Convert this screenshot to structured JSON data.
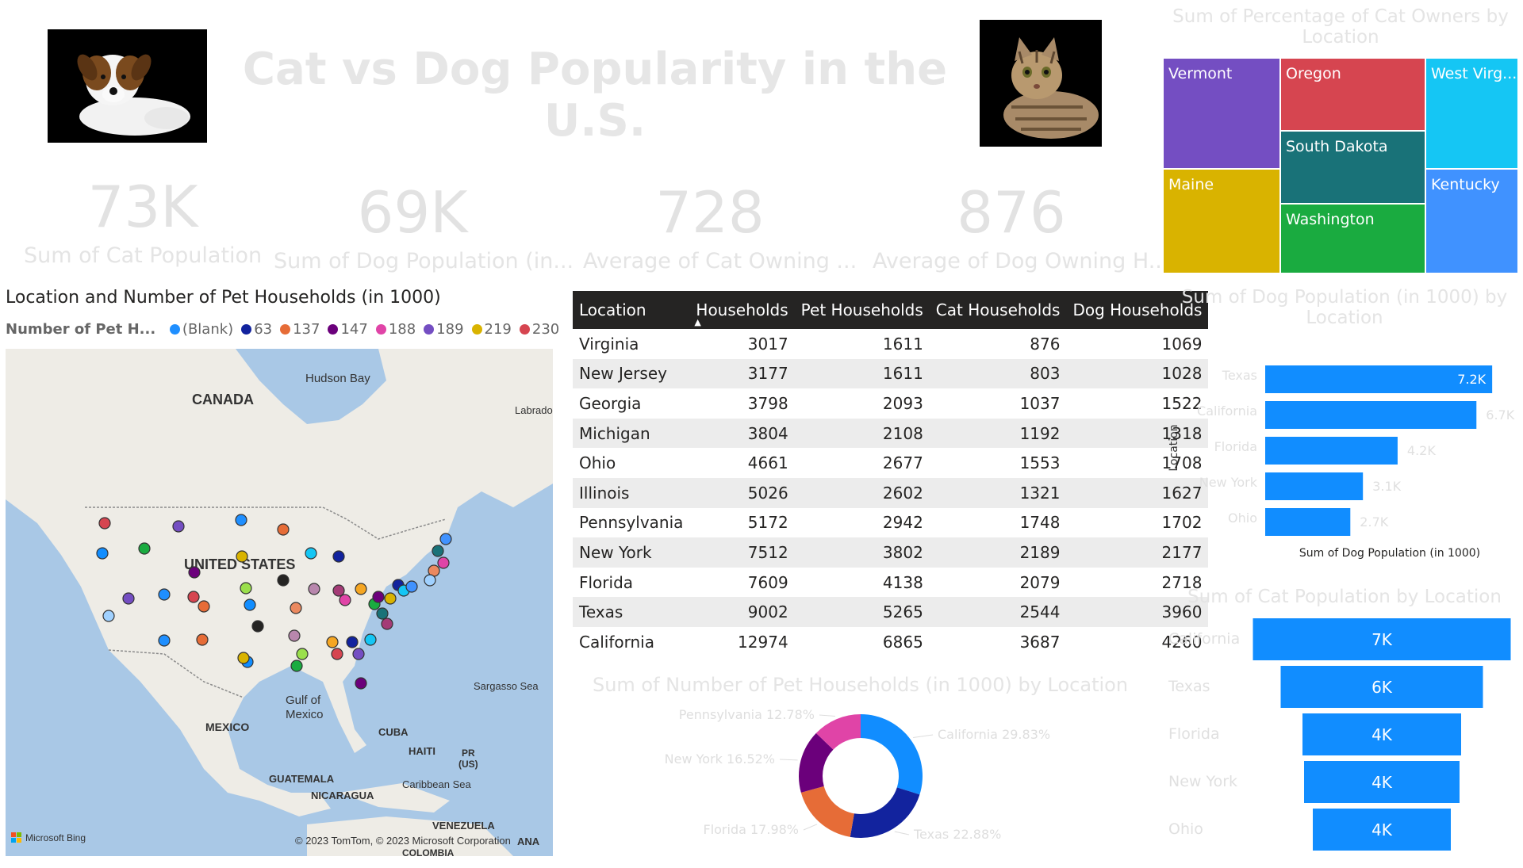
{
  "header": {
    "title": "Cat vs Dog Popularity in the U.S."
  },
  "kpis": [
    {
      "value": "73K",
      "label": "Sum of Cat Population"
    },
    {
      "value": "69K",
      "label": "Sum of Dog Population (in..."
    },
    {
      "value": "728",
      "label": "Average of Cat Owning ..."
    },
    {
      "value": "876",
      "label": "Average of Dog Owning H..."
    }
  ],
  "map": {
    "title": "Location and Number of Pet Households (in 1000)",
    "legend_title": "Number of Pet H...",
    "legend": [
      {
        "label": "(Blank)",
        "color": "#1f8fff"
      },
      {
        "label": "63",
        "color": "#12239e"
      },
      {
        "label": "137",
        "color": "#e66c37"
      },
      {
        "label": "147",
        "color": "#6b007b"
      },
      {
        "label": "188",
        "color": "#e044a7"
      },
      {
        "label": "189",
        "color": "#744ec2"
      },
      {
        "label": "219",
        "color": "#d9b300"
      },
      {
        "label": "230",
        "color": "#d64550"
      }
    ],
    "labels": {
      "canada": "CANADA",
      "us": "UNITED STATES",
      "mexico": "MEXICO",
      "hudson": "Hudson Bay",
      "labrador": "Labrado",
      "gulf1": "Gulf of",
      "gulf2": "Mexico",
      "sargasso": "Sargasso Sea",
      "cuba": "CUBA",
      "haiti": "HAITI",
      "pr1": "PR",
      "pr2": "(US)",
      "guatemala": "GUATEMALA",
      "caribbean": "Caribbean Sea",
      "nicaragua": "NICARAGUA",
      "venezuela": "VENEZUELA",
      "guyana": "ANA",
      "colombia": "COLOMBIA",
      "bing": "Microsoft Bing",
      "copyright": "© 2023 TomTom, © 2023 Microsoft Corporation"
    },
    "bubble_colors": [
      "#d64550",
      "#744ec2",
      "#1f8fff",
      "#e66c37",
      "#118dff",
      "#1aab40",
      "#6b007b",
      "#d9b300",
      "#12239e",
      "#15c6f4",
      "#4092ff",
      "#197278",
      "#e044a7",
      "#eb895f",
      "#a0d1ff",
      "#252423",
      "#b887ad",
      "#a43b76",
      "#f5a623",
      "#9adf4c"
    ]
  },
  "table": {
    "columns": [
      "Location",
      "Households",
      "Pet Households",
      "Cat Households",
      "Dog Households"
    ],
    "rows": [
      [
        "Virginia",
        "3017",
        "1611",
        "876",
        "1069"
      ],
      [
        "New Jersey",
        "3177",
        "1611",
        "803",
        "1028"
      ],
      [
        "Georgia",
        "3798",
        "2093",
        "1037",
        "1522"
      ],
      [
        "Michigan",
        "3804",
        "2108",
        "1192",
        "1318"
      ],
      [
        "Ohio",
        "4661",
        "2677",
        "1553",
        "1708"
      ],
      [
        "Illinois",
        "5026",
        "2602",
        "1321",
        "1627"
      ],
      [
        "Pennsylvania",
        "5172",
        "2942",
        "1748",
        "1702"
      ],
      [
        "New York",
        "7512",
        "3802",
        "2189",
        "2177"
      ],
      [
        "Florida",
        "7609",
        "4138",
        "2079",
        "2718"
      ],
      [
        "Texas",
        "9002",
        "5265",
        "2544",
        "3960"
      ],
      [
        "California",
        "12974",
        "6865",
        "3687",
        "4260"
      ]
    ]
  },
  "donut": {
    "title": "Sum of Number of Pet Households (in 1000) by Location",
    "slices": [
      {
        "label": "California 29.83%",
        "value": 29.83,
        "color": "#118dff"
      },
      {
        "label": "Texas 22.88%",
        "value": 22.88,
        "color": "#12239e"
      },
      {
        "label": "Florida 17.98%",
        "value": 17.98,
        "color": "#e66c37"
      },
      {
        "label": "New York 16.52%",
        "value": 16.52,
        "color": "#6b007b"
      },
      {
        "label": "Pennsylvania 12.78%",
        "value": 12.78,
        "color": "#e044a7"
      }
    ]
  },
  "treemap": {
    "title": "Sum of Percentage of Cat Owners by Location",
    "tiles": [
      {
        "label": "Vermont",
        "color": "#744ec2"
      },
      {
        "label": "Maine",
        "color": "#d9b300"
      },
      {
        "label": "Oregon",
        "color": "#d64550"
      },
      {
        "label": "South Dakota",
        "color": "#197278"
      },
      {
        "label": "Washington",
        "color": "#1aab40"
      },
      {
        "label": "West Virg...",
        "color": "#15c6f4"
      },
      {
        "label": "Kentucky",
        "color": "#4092ff"
      }
    ]
  },
  "dog_bar": {
    "title": "Sum of Dog Population (in 1000) by Location",
    "ylabel": "Location",
    "xlabel": "Sum of Dog Population (in 1000)",
    "color": "#118dff"
  },
  "cat_funnel": {
    "title": "Sum of Cat Population by Location",
    "color": "#118dff"
  },
  "chart_data": [
    {
      "type": "bar",
      "title": "Sum of Dog Population (in 1000) by Location",
      "xlabel": "Sum of Dog Population (in 1000)",
      "ylabel": "Location",
      "categories": [
        "Texas",
        "California",
        "Florida",
        "New York",
        "Ohio"
      ],
      "values": [
        7200,
        6700,
        4200,
        3100,
        2700
      ],
      "data_labels": [
        "7.2K",
        "6.7K",
        "4.2K",
        "3.1K",
        "2.7K"
      ]
    },
    {
      "type": "bar",
      "title": "Sum of Cat Population by Location",
      "categories": [
        "California",
        "Texas",
        "Florida",
        "New York",
        "Ohio"
      ],
      "values": [
        7000,
        6000,
        4000,
        4000,
        4000
      ],
      "data_labels": [
        "7K",
        "6K",
        "4K",
        "4K",
        "4K"
      ]
    },
    {
      "type": "pie",
      "title": "Sum of Number of Pet Households (in 1000) by Location",
      "categories": [
        "California",
        "Texas",
        "Florida",
        "New York",
        "Pennsylvania"
      ],
      "values": [
        29.83,
        22.88,
        17.98,
        16.52,
        12.78
      ]
    }
  ]
}
